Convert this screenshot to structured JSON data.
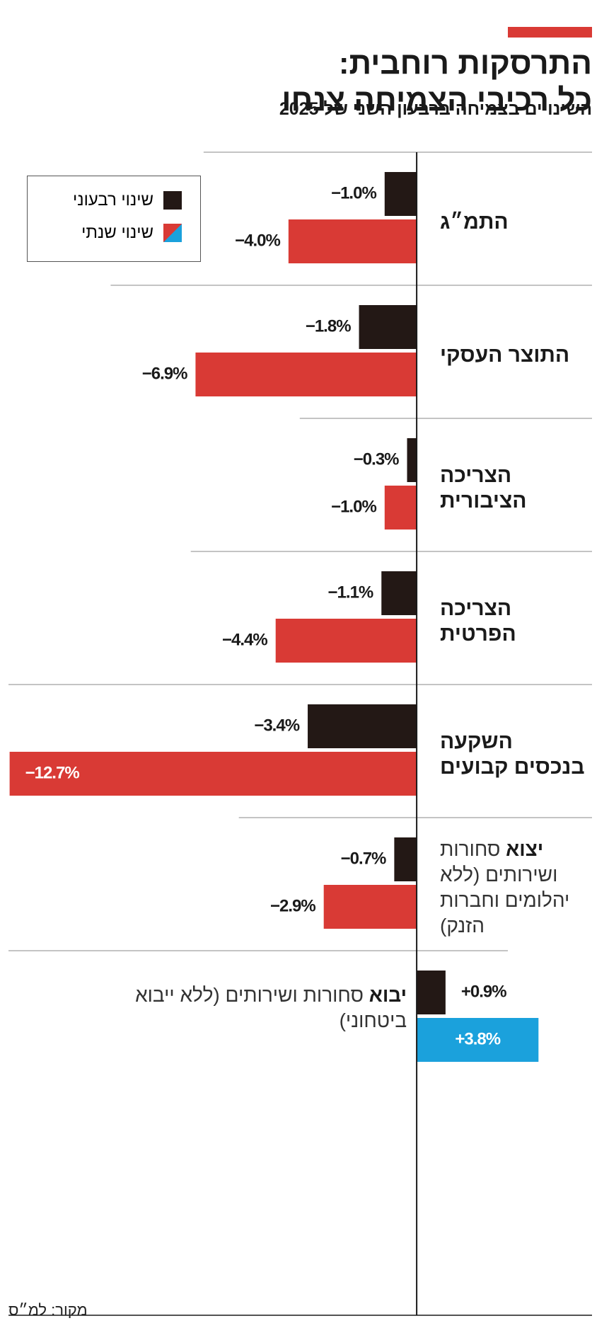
{
  "chart_data": {
    "type": "bar",
    "orientation": "horizontal",
    "title": [
      "התרסקות רוחבית:",
      "כל רכיבי הצמיחה צנחו"
    ],
    "subtitle": "השינויים בצמיחה ברבעון השני של 2025",
    "categories": [
      "התמ״ג",
      "התוצר העסקי",
      "הצריכה הציבורית",
      "הצריכה הפרטית",
      "השקעה בנכסים קבועים",
      {
        "label": "יצוא",
        "detail": "סחורות ושירותים (ללא יהלומים וחברות הזנק)"
      },
      {
        "label": "יבוא",
        "detail": "סחורות ושירותים (ללא ייבוא ביטחוני)"
      }
    ],
    "series": [
      {
        "name": "שינוי רבעוני",
        "color": "#231815",
        "values": [
          -1.0,
          -1.8,
          -0.3,
          -1.1,
          -3.4,
          -0.7,
          0.9
        ],
        "value_labels": [
          "−1.0%",
          "−1.8%",
          "−0.3%",
          "−1.1%",
          "−3.4%",
          "−0.7%",
          "+0.9%"
        ]
      },
      {
        "name": "שינוי שנתי",
        "color": "#d93a35",
        "colors": [
          "#d93a35",
          "#d93a35",
          "#d93a35",
          "#d93a35",
          "#d93a35",
          "#d93a35",
          "#1ba1dc"
        ],
        "values": [
          -4.0,
          -6.9,
          -1.0,
          -4.4,
          -12.7,
          -2.9,
          3.8
        ],
        "value_labels": [
          "−4.0%",
          "−6.9%",
          "−1.0%",
          "−4.4%",
          "−12.7%",
          "−2.9%",
          "+3.8%"
        ]
      }
    ],
    "xlim": [
      -13,
      6
    ],
    "source": "מקור: למ״ס"
  }
}
